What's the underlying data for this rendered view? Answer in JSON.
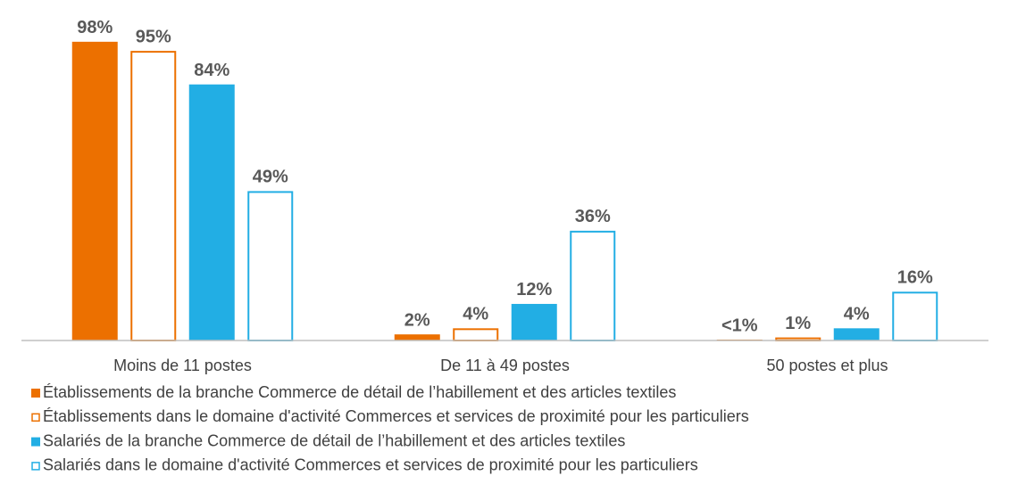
{
  "chart_data": {
    "type": "bar",
    "categories": [
      "Moins de 11 postes",
      "De 11 à 49 postes",
      "50 postes et plus"
    ],
    "series": [
      {
        "name": "Établissements de la branche Commerce de détail de l’habillement et des articles textiles",
        "color": "#ec7000",
        "filled": true,
        "values": [
          98,
          2,
          0.3
        ],
        "value_labels": [
          "98%",
          "2%",
          "<1%"
        ]
      },
      {
        "name": "Établissements dans le domaine d'activité Commerces et services de proximité pour les particuliers",
        "color": "#ec7000",
        "filled": false,
        "values": [
          95,
          4,
          1
        ],
        "value_labels": [
          "95%",
          "4%",
          "1%"
        ]
      },
      {
        "name": "Salariés de la branche Commerce de détail de l’habillement et des articles textiles",
        "color": "#22aee4",
        "filled": true,
        "values": [
          84,
          12,
          4
        ],
        "value_labels": [
          "84%",
          "12%",
          "4%"
        ]
      },
      {
        "name": "Salariés dans le domaine d'activité Commerces et services de proximité pour les particuliers",
        "color": "#22aee4",
        "filled": false,
        "values": [
          49,
          36,
          16
        ],
        "value_labels": [
          "49%",
          "36%",
          "16%"
        ]
      }
    ],
    "ylim": [
      0,
      100
    ]
  }
}
